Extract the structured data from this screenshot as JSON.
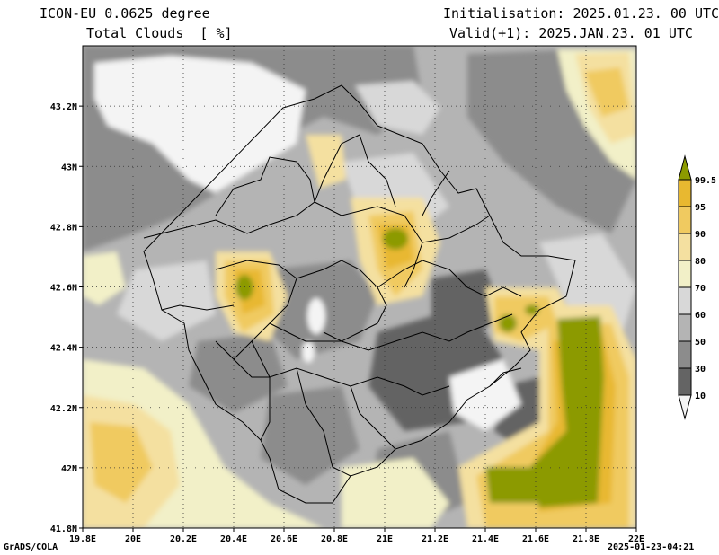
{
  "header": {
    "model": "ICON-EU 0.0625 degree",
    "variable": "Total Clouds  [ %]",
    "init": "Initialisation: 2025.01.23. 00 UTC",
    "valid": "Valid(+1): 2025.JAN.23. 01 UTC"
  },
  "axes": {
    "x_ticks": [
      "19.8E",
      "20E",
      "20.2E",
      "20.4E",
      "20.6E",
      "20.8E",
      "21E",
      "21.2E",
      "21.4E",
      "21.6E",
      "21.8E",
      "22E"
    ],
    "y_ticks": [
      "43.2N",
      "43N",
      "42.8N",
      "42.6N",
      "42.4N",
      "42.2N",
      "42N",
      "41.8N"
    ],
    "lon_range": [
      19.8,
      22.0
    ],
    "lat_range": [
      41.8,
      43.4
    ]
  },
  "colorbar": {
    "levels": [
      "99.5",
      "95",
      "90",
      "80",
      "70",
      "60",
      "50",
      "30",
      "10"
    ],
    "colors": [
      "#8c9a00",
      "#e8b830",
      "#f0ca60",
      "#f4e0a0",
      "#f2f0c8",
      "#d8d8d8",
      "#b4b4b4",
      "#8c8c8c",
      "#646464",
      "#f4f4f4"
    ]
  },
  "footer": {
    "left": "GrADS/COLA",
    "right": "2025-01-23-04:21"
  }
}
